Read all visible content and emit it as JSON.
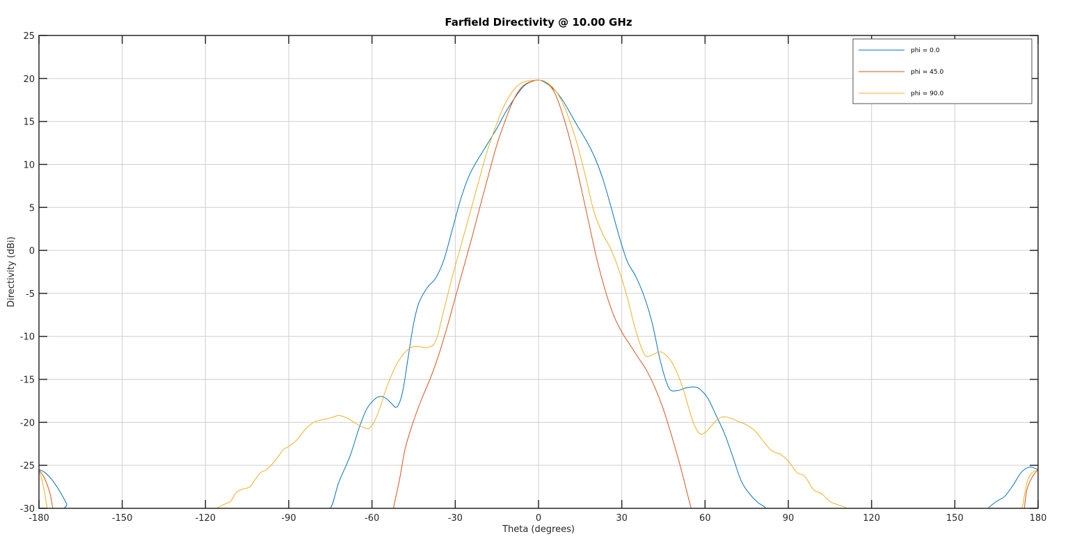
{
  "chart_data": {
    "type": "line",
    "title": "Farfield Directivity @ 10.00 GHz",
    "xlabel": "Theta (degrees)",
    "ylabel": "Directivity (dBi)",
    "xlim": [
      -180,
      180
    ],
    "ylim": [
      -30,
      25
    ],
    "xticks": [
      -180,
      -150,
      -120,
      -90,
      -60,
      -30,
      0,
      30,
      60,
      90,
      120,
      150,
      180
    ],
    "yticks": [
      -30,
      -25,
      -20,
      -15,
      -10,
      -5,
      0,
      5,
      10,
      15,
      20,
      25
    ],
    "grid": true,
    "legend_position": "top-right",
    "series": [
      {
        "name": "phi = 0.0",
        "color": "#0072bd",
        "x": [
          -180,
          -178,
          -175,
          -172,
          -170,
          -168,
          -120,
          -100,
          -80,
          -75,
          -72,
          -68,
          -65,
          -62,
          -59,
          -57,
          -55,
          -53,
          -51,
          -49,
          -47,
          -45,
          -43,
          -40,
          -37,
          -34,
          -31,
          -28,
          -25,
          -22,
          -18,
          -15,
          -12,
          -8,
          -5,
          -2,
          0,
          2,
          5,
          8,
          11,
          14,
          17,
          20,
          23,
          26,
          29,
          32,
          35,
          38,
          41,
          44,
          47,
          50,
          53,
          56,
          58,
          61,
          64,
          67,
          70,
          73,
          76,
          79,
          82,
          84,
          90,
          120,
          160,
          162,
          165,
          168,
          171,
          174,
          177,
          180
        ],
        "y": [
          -25.5,
          -25.8,
          -26.8,
          -28.3,
          -29.5,
          -31,
          -31,
          -31,
          -31,
          -30,
          -27,
          -24,
          -21,
          -18.5,
          -17.3,
          -17,
          -17.2,
          -17.8,
          -18.2,
          -16.5,
          -12.5,
          -8.5,
          -6,
          -4.3,
          -3.2,
          -1,
          2.5,
          6,
          8.7,
          10.5,
          12.6,
          14.2,
          16,
          18,
          19.2,
          19.7,
          19.8,
          19.6,
          18.9,
          17.8,
          16.2,
          14.5,
          12.9,
          11,
          8.5,
          5.2,
          1.7,
          -1.3,
          -3,
          -5.3,
          -8.5,
          -13,
          -16,
          -16.3,
          -16,
          -15.9,
          -16.1,
          -17.2,
          -19.2,
          -21.3,
          -24,
          -26.8,
          -28.3,
          -29.3,
          -30,
          -31,
          -31,
          -31,
          -31,
          -30,
          -29.2,
          -28.6,
          -27.3,
          -25.8,
          -25.2,
          -25.5
        ]
      },
      {
        "name": "phi = 45.0",
        "color": "#d95319",
        "x": [
          -180,
          -178,
          -176,
          -175,
          -174,
          -60,
          -53,
          -52,
          -50,
          -48,
          -45,
          -42,
          -39,
          -36,
          -33,
          -30,
          -27,
          -24,
          -21,
          -18,
          -15,
          -12,
          -9,
          -6,
          -3,
          0,
          3,
          6,
          9,
          12,
          15,
          18,
          21,
          24,
          27,
          30,
          33,
          36,
          39,
          42,
          45,
          48,
          51,
          53,
          55,
          56,
          57,
          60,
          170,
          174,
          175,
          176,
          178,
          180
        ],
        "y": [
          -25.5,
          -26.5,
          -28.3,
          -30,
          -31,
          -31,
          -30.5,
          -29.5,
          -26.5,
          -23,
          -19.8,
          -17.2,
          -14.9,
          -12.2,
          -9,
          -5.5,
          -2,
          1.5,
          5.2,
          8.8,
          12.3,
          15.1,
          17.5,
          19,
          19.6,
          19.8,
          19.5,
          18.2,
          15.5,
          12,
          7.8,
          3.4,
          -1,
          -4.6,
          -7.5,
          -9.5,
          -11,
          -12.5,
          -14,
          -16,
          -18.5,
          -21.6,
          -25,
          -27.5,
          -30,
          -31,
          -31,
          -31,
          -31,
          -31,
          -30,
          -27.8,
          -26.3,
          -25.5
        ]
      },
      {
        "name": "phi = 90.0",
        "color": "#edb120",
        "x": [
          -180,
          -179,
          -178,
          -177,
          -176,
          -175,
          -120,
          -116,
          -113,
          -111,
          -109,
          -107,
          -104,
          -102,
          -100,
          -98,
          -95,
          -92,
          -90,
          -87,
          -84,
          -81,
          -78,
          -75,
          -72,
          -69,
          -66,
          -63,
          -61,
          -59,
          -57,
          -55,
          -52,
          -49,
          -46,
          -43,
          -40,
          -37,
          -34,
          -31,
          -28,
          -25,
          -22,
          -19,
          -16,
          -13,
          -10,
          -7,
          -4,
          -1,
          0,
          2,
          5,
          8,
          11,
          14,
          17,
          20,
          23,
          26,
          29,
          32,
          35,
          38,
          40,
          42,
          44,
          46,
          48,
          50,
          52,
          54,
          56,
          58,
          60,
          62,
          64,
          66,
          68,
          70,
          72,
          75,
          78,
          81,
          84,
          87,
          90,
          93,
          96,
          99,
          102,
          105,
          108,
          111,
          113,
          115,
          120,
          170,
          174,
          175,
          176,
          177,
          178,
          180
        ],
        "y": [
          -25.5,
          -26.6,
          -28.1,
          -30,
          -31,
          -31,
          -31,
          -30,
          -29.5,
          -29.2,
          -28.2,
          -27.8,
          -27.5,
          -26.6,
          -25.8,
          -25.5,
          -24.5,
          -23.2,
          -22.8,
          -22,
          -20.8,
          -20,
          -19.7,
          -19.5,
          -19.2,
          -19.5,
          -20.1,
          -20.6,
          -20.7,
          -19.8,
          -18.2,
          -16.2,
          -13.8,
          -12.2,
          -11.3,
          -11.2,
          -11.3,
          -10.5,
          -6.8,
          -3,
          0.5,
          4,
          7.5,
          11,
          13.9,
          16.4,
          18.2,
          19.3,
          19.7,
          19.8,
          19.8,
          19.7,
          19,
          17.6,
          15.3,
          12.3,
          8.5,
          4.5,
          2,
          0.2,
          -2.3,
          -5.5,
          -9.3,
          -12,
          -12.3,
          -12,
          -11.8,
          -12.2,
          -13,
          -14.3,
          -16,
          -18.2,
          -20.2,
          -21.3,
          -21.2,
          -20.5,
          -19.8,
          -19.4,
          -19.4,
          -19.6,
          -19.9,
          -20.3,
          -21,
          -22.2,
          -23.3,
          -23.7,
          -24.5,
          -25.8,
          -26.3,
          -27.8,
          -28.3,
          -29.2,
          -29.6,
          -30,
          -31,
          -31,
          -31,
          -31,
          -30,
          -28.6,
          -27,
          -26.2,
          -25.8,
          -25.5
        ]
      }
    ]
  }
}
